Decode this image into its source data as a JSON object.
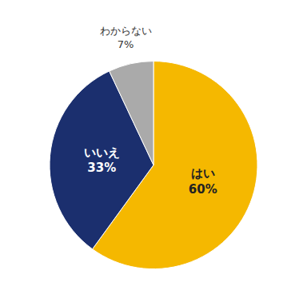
{
  "chart_data": {
    "type": "pie",
    "categories": [
      "はい",
      "いいえ",
      "わからない"
    ],
    "values": [
      60,
      33,
      7
    ],
    "value_labels": [
      "60%",
      "33%",
      "7%"
    ],
    "colors": [
      "#F5B800",
      "#1B2F6E",
      "#AAAAAA"
    ],
    "data_labels": true
  }
}
